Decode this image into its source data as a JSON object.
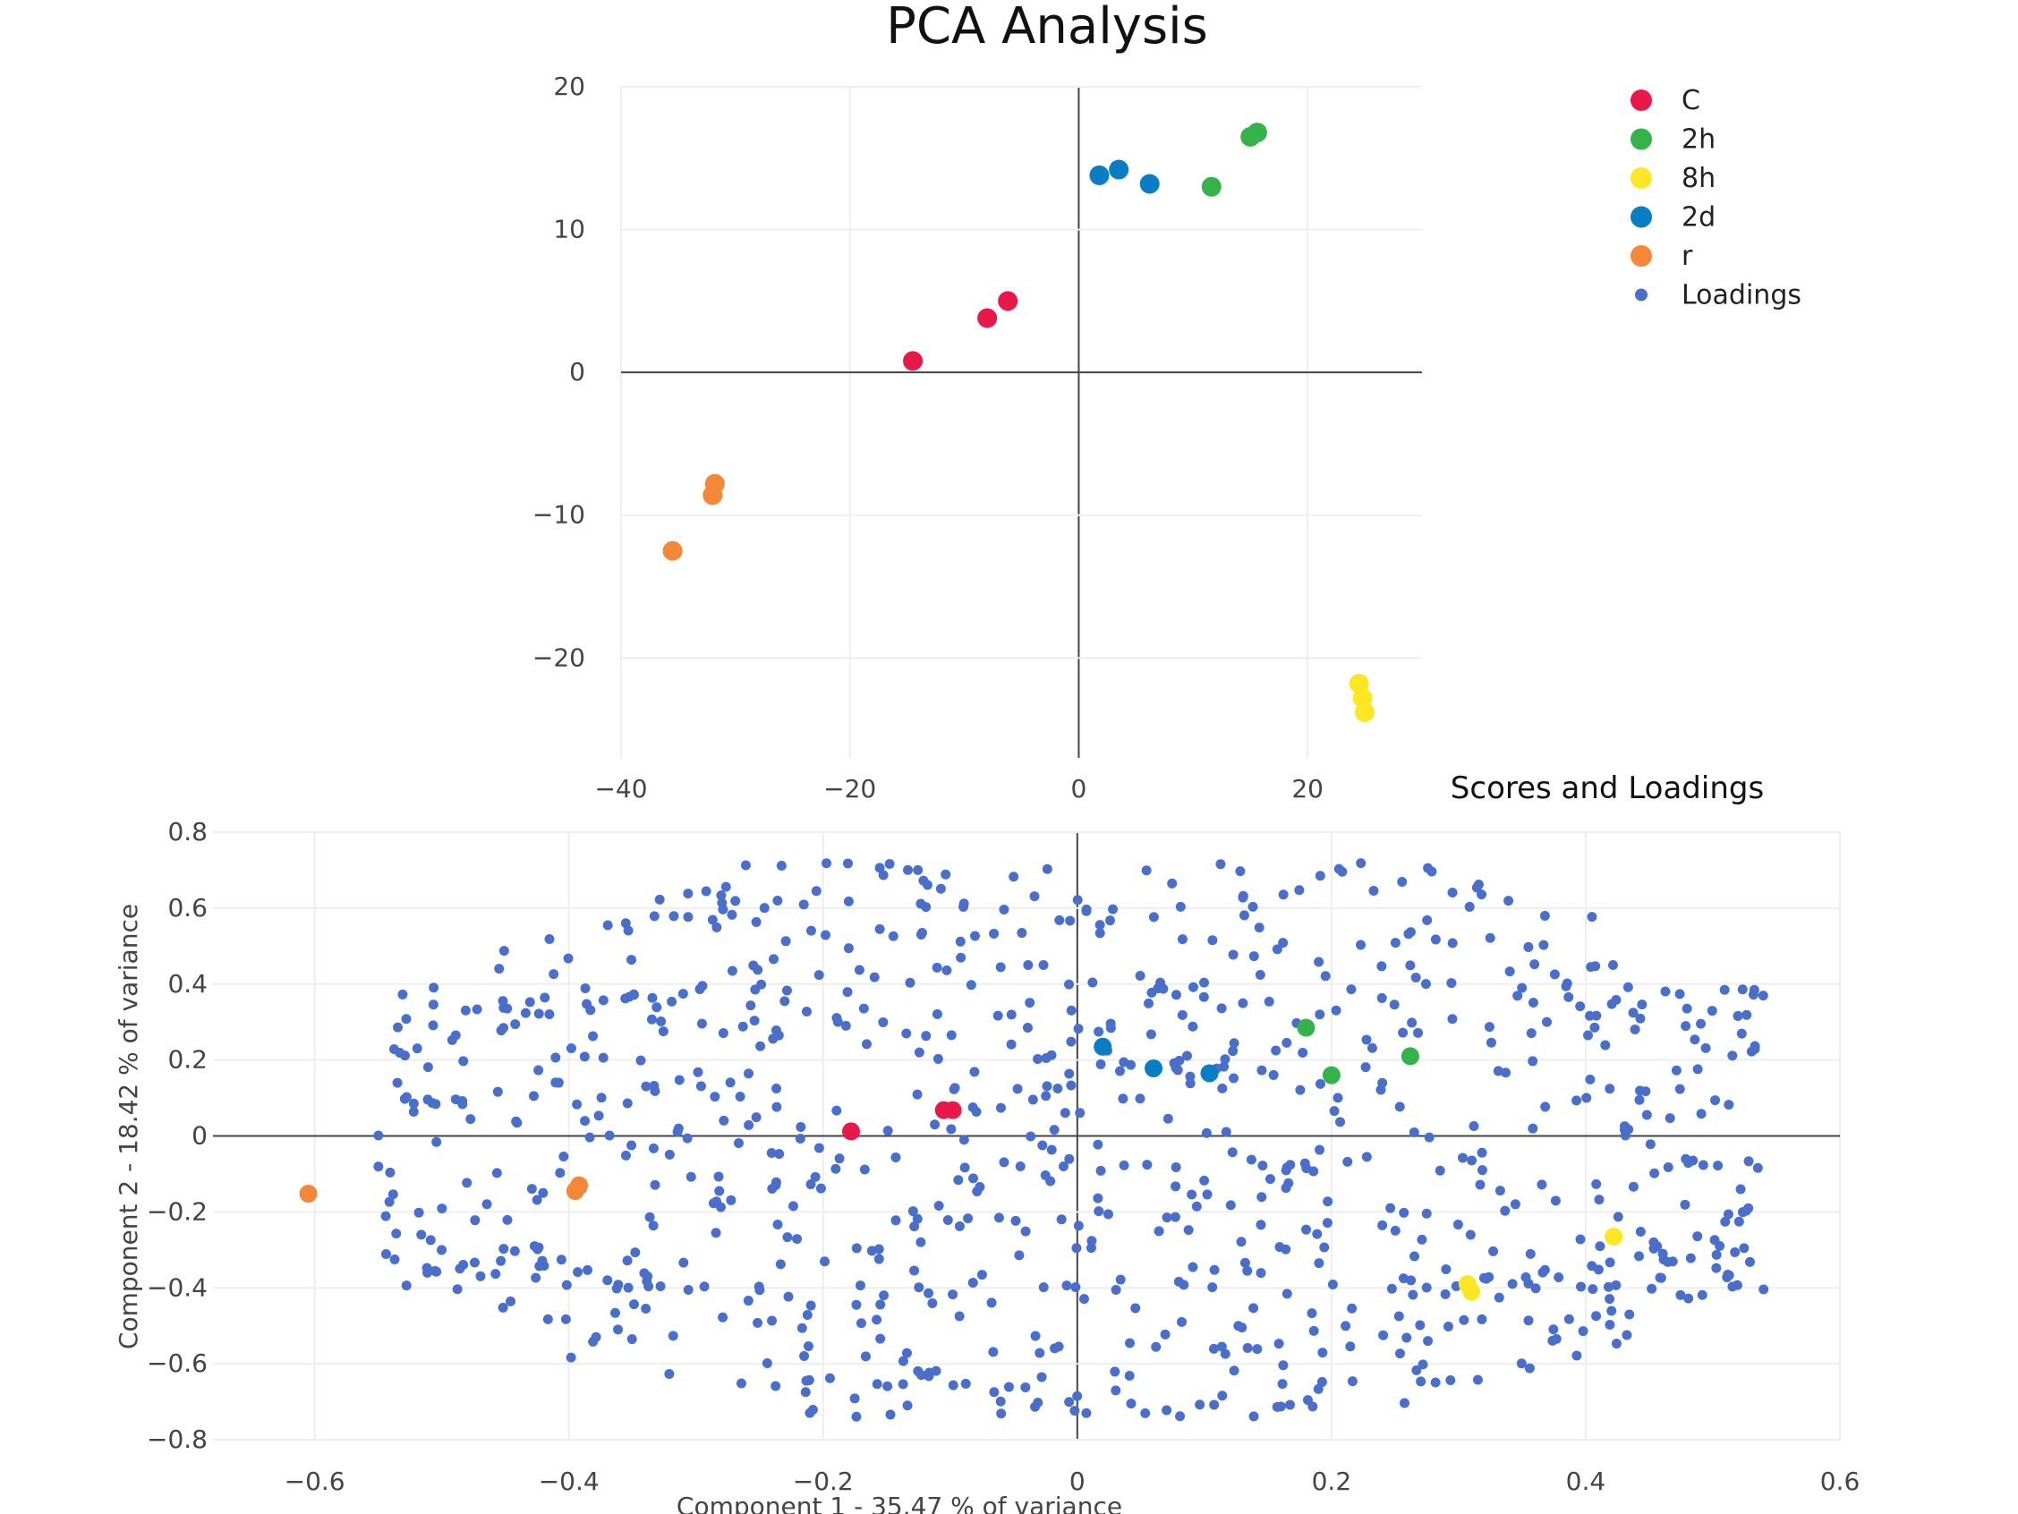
{
  "chart_data": [
    {
      "type": "scatter",
      "title": "PCA Analysis",
      "xlim": [
        -40,
        30
      ],
      "ylim": [
        -27,
        20
      ],
      "x_ticks": [
        -40,
        -20,
        0,
        20
      ],
      "y_ticks": [
        20,
        10,
        0,
        -10,
        -20
      ],
      "legend_position": "top-right",
      "series": [
        {
          "name": "C",
          "color": "#e8194a",
          "points": [
            [
              -14.5,
              0.8
            ],
            [
              -8,
              3.8
            ],
            [
              -6.2,
              5
            ]
          ]
        },
        {
          "name": "2h",
          "color": "#35b24a",
          "points": [
            [
              11.6,
              13
            ],
            [
              15,
              16.5
            ],
            [
              15.6,
              16.8
            ]
          ]
        },
        {
          "name": "8h",
          "color": "#fde725",
          "points": [
            [
              24.5,
              -21.8
            ],
            [
              24.8,
              -22.8
            ],
            [
              25,
              -23.8
            ]
          ]
        },
        {
          "name": "2d",
          "color": "#0a7dc4",
          "points": [
            [
              1.8,
              13.8
            ],
            [
              3.5,
              14.2
            ],
            [
              6.2,
              13.2
            ]
          ]
        },
        {
          "name": "r",
          "color": "#f5873a",
          "points": [
            [
              -31.8,
              -7.8
            ],
            [
              -32,
              -8.6
            ],
            [
              -35.5,
              -12.5
            ]
          ]
        }
      ]
    },
    {
      "type": "scatter",
      "title": "Scores and Loadings",
      "xlabel": "Component 1 - 35.47 % of variance",
      "ylabel": "Component 2 - 18.42 % of variance",
      "xlim": [
        -0.68,
        0.6
      ],
      "ylim": [
        -0.8,
        0.8
      ],
      "x_ticks": [
        -0.6,
        -0.4,
        -0.2,
        0,
        0.2,
        0.4,
        0.6
      ],
      "y_ticks": [
        0.8,
        0.6,
        0.4,
        0.2,
        0,
        -0.2,
        -0.4,
        -0.6,
        -0.8
      ],
      "series": [
        {
          "name": "Loadings",
          "color": "#4a6fcb",
          "generated_points": 900,
          "point_range": {
            "x": [
              -0.55,
              0.54
            ],
            "y": [
              -0.74,
              0.72
            ]
          }
        },
        {
          "name": "C",
          "color": "#e8194a",
          "points": [
            [
              -0.178,
              0.012
            ],
            [
              -0.105,
              0.068
            ],
            [
              -0.098,
              0.068
            ]
          ]
        },
        {
          "name": "2h",
          "color": "#35b24a",
          "points": [
            [
              0.18,
              0.285
            ],
            [
              0.2,
              0.16
            ],
            [
              0.262,
              0.21
            ]
          ]
        },
        {
          "name": "8h",
          "color": "#fde725",
          "points": [
            [
              0.307,
              -0.39
            ],
            [
              0.31,
              -0.41
            ],
            [
              0.422,
              -0.265
            ]
          ]
        },
        {
          "name": "2d",
          "color": "#0a7dc4",
          "points": [
            [
              0.02,
              0.235
            ],
            [
              0.06,
              0.178
            ],
            [
              0.104,
              0.165
            ]
          ]
        },
        {
          "name": "r",
          "color": "#f5873a",
          "points": [
            [
              -0.605,
              -0.152
            ],
            [
              -0.395,
              -0.145
            ],
            [
              -0.392,
              -0.13
            ]
          ]
        }
      ]
    }
  ],
  "legend": [
    {
      "name": "C",
      "color": "#e8194a",
      "size": "large"
    },
    {
      "name": "2h",
      "color": "#35b24a",
      "size": "large"
    },
    {
      "name": "8h",
      "color": "#fde725",
      "size": "large"
    },
    {
      "name": "2d",
      "color": "#0a7dc4",
      "size": "large"
    },
    {
      "name": "r",
      "color": "#f5873a",
      "size": "large"
    },
    {
      "name": "Loadings",
      "color": "#4a6fcb",
      "size": "small"
    }
  ]
}
